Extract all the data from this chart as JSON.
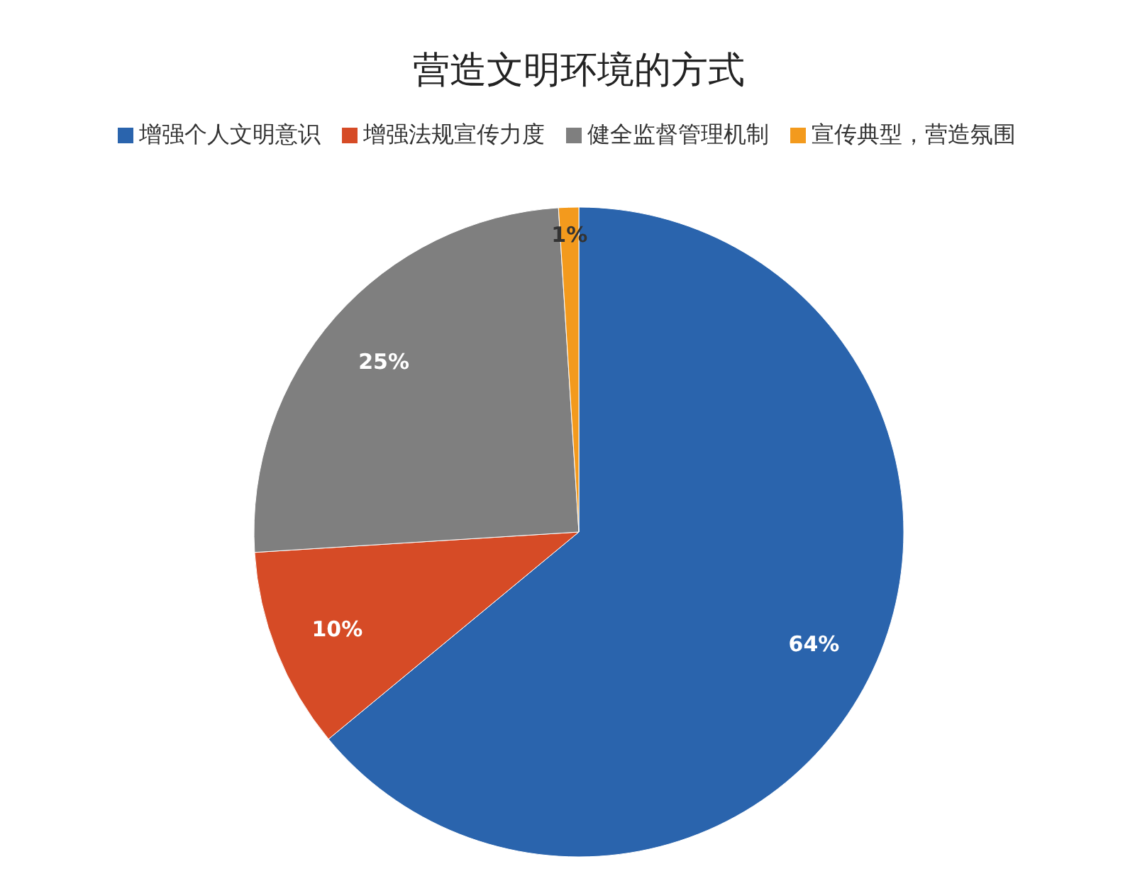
{
  "chart_data": {
    "type": "pie",
    "title": "营造文明环境的方式",
    "categories": [
      "增强个人文明意识",
      "增强法规宣传力度",
      "健全监督管理机制",
      "宣传典型，营造氛围"
    ],
    "values": [
      64,
      10,
      25,
      1
    ],
    "colors": [
      "#2a64ad",
      "#d64b26",
      "#7f7f7f",
      "#f39a1d"
    ],
    "value_labels": [
      "64%",
      "10%",
      "25%",
      "1%"
    ],
    "legend": "top"
  }
}
